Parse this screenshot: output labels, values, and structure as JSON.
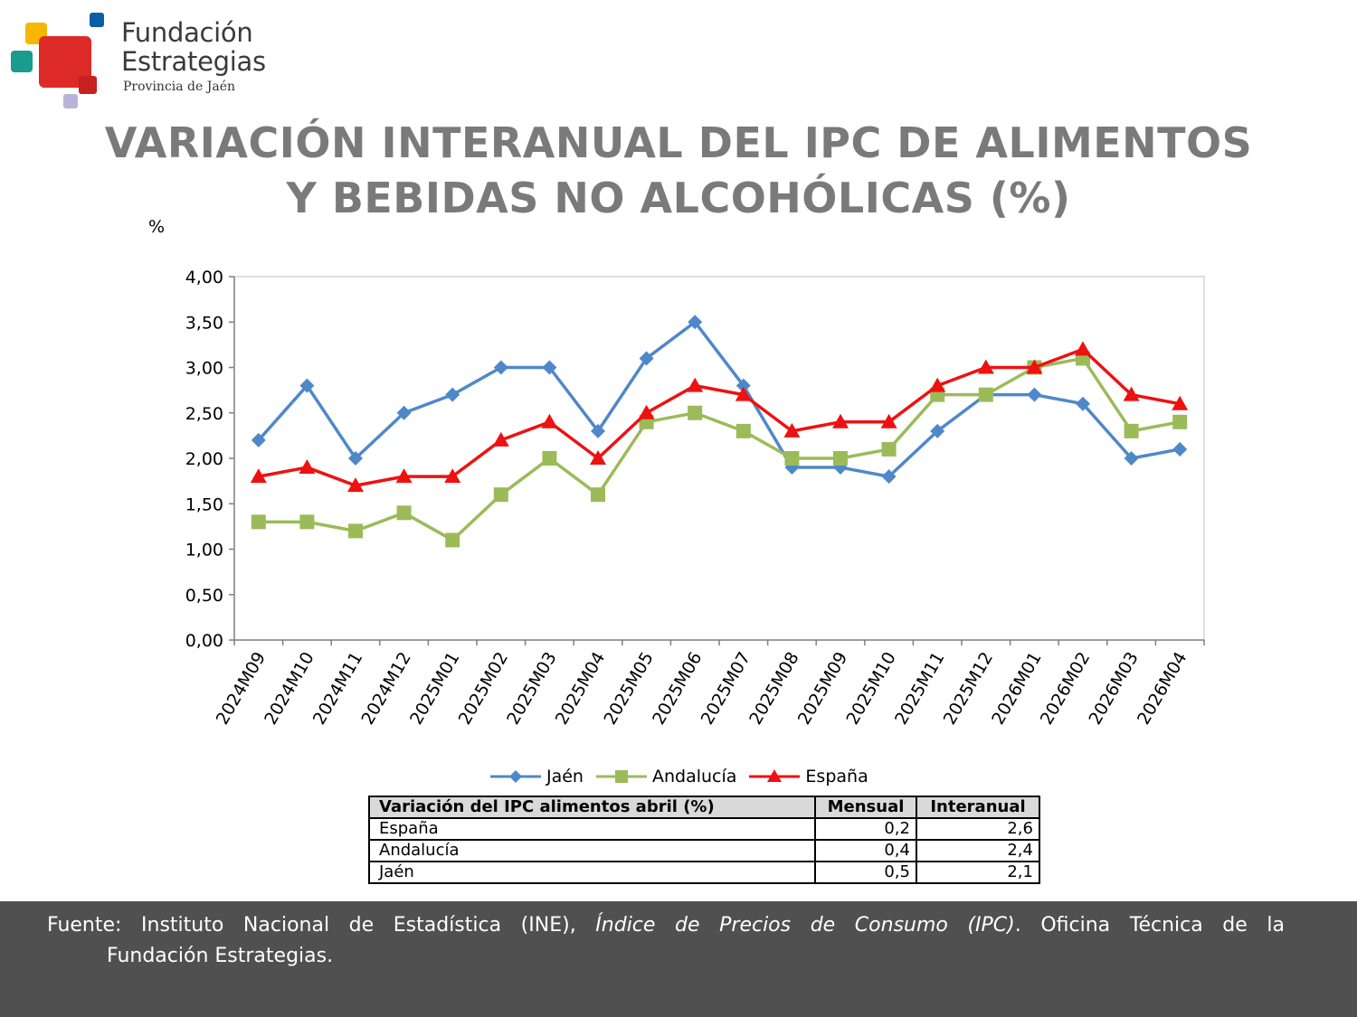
{
  "logo": {
    "name_line1": "Fundación",
    "name_line2": "Estrategias",
    "subtitle": "Provincia de Jaén",
    "colors": [
      "#f5b700",
      "#0a5ea8",
      "#1a9b8f",
      "#dd2a27",
      "#b9b3d9"
    ]
  },
  "title_line1": "VARIACIÓN INTERANUAL DEL IPC DE ALIMENTOS",
  "title_line2": "Y BEBIDAS NO ALCOHÓLICAS (%)",
  "unit_label": "%",
  "chart_data": {
    "type": "line",
    "title": "VARIACIÓN INTERANUAL DEL IPC DE ALIMENTOS Y BEBIDAS NO ALCOHÓLICAS (%)",
    "ylabel": "%",
    "xlabel": "",
    "ylim": [
      0,
      4
    ],
    "ytick_step": 0.5,
    "grid": false,
    "legend_position": "bottom",
    "categories": [
      "2024M09",
      "2024M10",
      "2024M11",
      "2024M12",
      "2025M01",
      "2025M02",
      "2025M03",
      "2025M04",
      "2025M05",
      "2025M06",
      "2025M07",
      "2025M08",
      "2025M09",
      "2025M10",
      "2025M11",
      "2025M12",
      "2026M01",
      "2026M02",
      "2026M03",
      "2026M04"
    ],
    "series": [
      {
        "name": "Jaén",
        "color": "#4f88c8",
        "marker": "diamond",
        "values": [
          2.2,
          2.8,
          2.0,
          2.5,
          2.7,
          3.0,
          3.0,
          2.3,
          3.1,
          3.5,
          2.8,
          1.9,
          1.9,
          1.8,
          2.3,
          2.7,
          2.7,
          2.6,
          2.0,
          2.1
        ]
      },
      {
        "name": "Andalucía",
        "color": "#9bbb59",
        "marker": "square",
        "values": [
          1.3,
          1.3,
          1.2,
          1.4,
          1.1,
          1.6,
          2.0,
          1.6,
          2.4,
          2.5,
          2.3,
          2.0,
          2.0,
          2.1,
          2.7,
          2.7,
          3.0,
          3.1,
          2.3,
          2.4
        ]
      },
      {
        "name": "España",
        "color": "#ee1111",
        "marker": "triangle",
        "values": [
          1.8,
          1.9,
          1.7,
          1.8,
          1.8,
          2.2,
          2.4,
          2.0,
          2.5,
          2.8,
          2.7,
          2.3,
          2.4,
          2.4,
          2.8,
          3.0,
          3.0,
          3.2,
          2.7,
          2.6
        ]
      }
    ]
  },
  "table": {
    "headers": [
      "Variación del IPC alimentos abril (%)",
      "Mensual",
      "Interanual"
    ],
    "rows": [
      {
        "label": "España",
        "mensual": "0,2",
        "interanual": "2,6"
      },
      {
        "label": "Andalucía",
        "mensual": "0,4",
        "interanual": "2,4"
      },
      {
        "label": "Jaén",
        "mensual": "0,5",
        "interanual": "2,1"
      }
    ]
  },
  "footer": {
    "prefix": "Fuente: Instituto Nacional de Estadística (INE), ",
    "italic": "Índice de Precios de Consumo (IPC)",
    "suffix": ". Oficina Técnica de la",
    "line2": "Fundación Estrategias."
  }
}
